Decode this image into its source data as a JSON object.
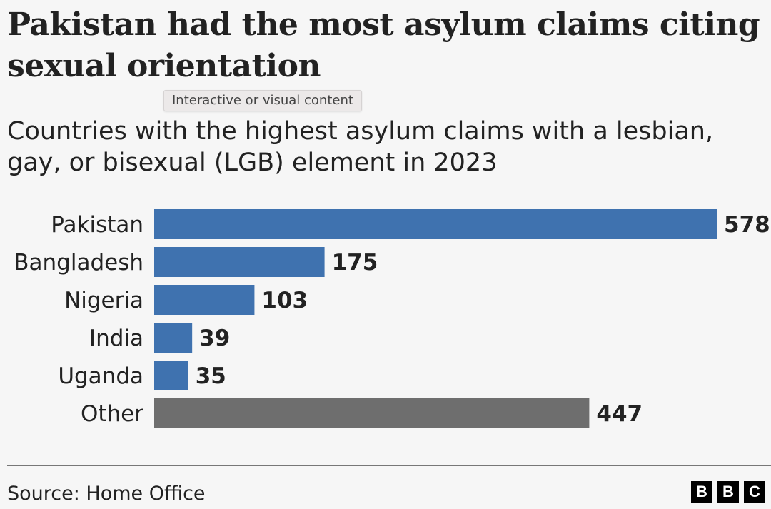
{
  "title": "Pakistan had the most asylum claims citing sexual orientation",
  "subtitle": "Countries with the highest asylum claims with a lesbian, gay, or bisexual (LGB) element in 2023",
  "tooltip": "Interactive or visual content",
  "source": "Source: Home Office",
  "logo": [
    "B",
    "B",
    "C"
  ],
  "colors": {
    "primary": "#3f72af",
    "other": "#6e6e6e"
  },
  "chart_data": {
    "type": "bar",
    "orientation": "horizontal",
    "categories": [
      "Pakistan",
      "Bangladesh",
      "Nigeria",
      "India",
      "Uganda",
      "Other"
    ],
    "values": [
      578,
      175,
      103,
      39,
      35,
      447
    ],
    "data_labels": [
      "578",
      "175",
      "103",
      "39",
      "35",
      "447"
    ],
    "bar_colors": [
      "#3f72af",
      "#3f72af",
      "#3f72af",
      "#3f72af",
      "#3f72af",
      "#6e6e6e"
    ],
    "xlim": [
      0,
      578
    ],
    "grid": false
  }
}
